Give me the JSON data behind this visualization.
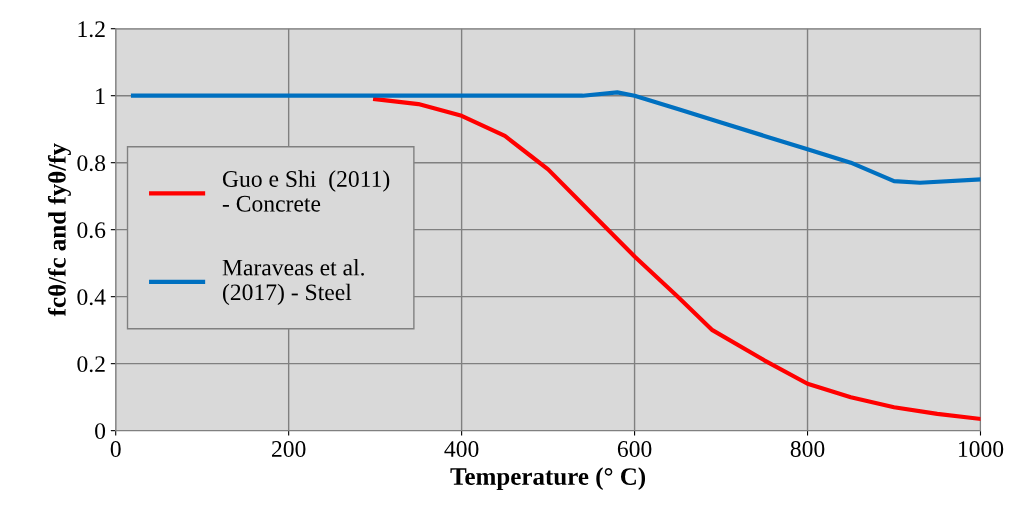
{
  "chart_data": {
    "type": "line",
    "xlabel": "Temperature (° C)",
    "ylabel": "fcθ/fc and fyθ/fy",
    "series": [
      {
        "name": "Guo e Shi  (2011)\n- Concrete",
        "color": "#ff0000",
        "x": [
          300,
          350,
          400,
          450,
          480,
          500,
          550,
          600,
          650,
          690,
          750,
          800,
          850,
          900,
          950,
          1000
        ],
        "values": [
          0.99,
          0.975,
          0.94,
          0.88,
          0.82,
          0.78,
          0.65,
          0.52,
          0.4,
          0.3,
          0.21,
          0.14,
          0.1,
          0.07,
          0.05,
          0.035
        ]
      },
      {
        "name": "Maraveas et al.\n(2017) - Steel",
        "color": "#0070c0",
        "x": [
          20,
          100,
          200,
          300,
          400,
          500,
          540,
          580,
          600,
          650,
          700,
          750,
          800,
          850,
          900,
          930,
          1000
        ],
        "values": [
          1,
          1,
          1,
          1,
          1,
          1,
          1.0,
          1.01,
          1.0,
          0.96,
          0.92,
          0.88,
          0.84,
          0.8,
          0.745,
          0.74,
          0.75
        ]
      }
    ],
    "xlim": [
      0,
      1000
    ],
    "xticks": [
      0,
      200,
      400,
      600,
      800,
      1000
    ],
    "ylim": [
      0,
      1.2
    ],
    "yticks": [
      0,
      0.2,
      0.4,
      0.6,
      0.8,
      1,
      1.2
    ],
    "grid": true,
    "legend": "center left",
    "marker": "none",
    "line_style": "solid"
  }
}
